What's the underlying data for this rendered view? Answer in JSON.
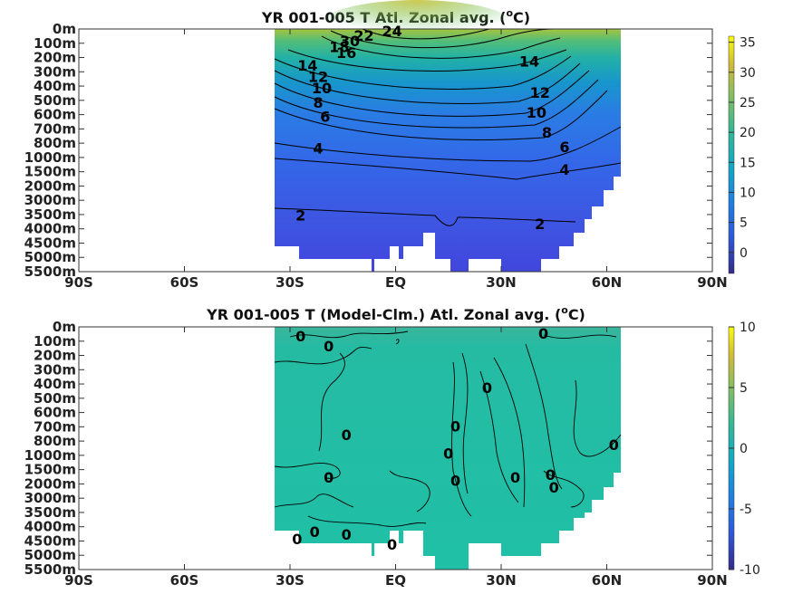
{
  "chart_data": [
    {
      "type": "heatmap",
      "subtype": "filled-contour",
      "title": "YR 001-005 T Atl. Zonal avg. (oC)",
      "title_parts": [
        "YR 001-005 T Atl. Zonal avg. (",
        "o",
        "C)"
      ],
      "x_ticks": [
        "90S",
        "60S",
        "30S",
        "EQ",
        "30N",
        "60N",
        "90N"
      ],
      "x_values": [
        -90,
        -60,
        -30,
        0,
        30,
        60,
        90
      ],
      "depth_ticks": [
        "0m",
        "100m",
        "200m",
        "300m",
        "400m",
        "500m",
        "600m",
        "700m",
        "800m",
        "1000m",
        "1500m",
        "2000m",
        "3000m",
        "3500m",
        "4000m",
        "4500m",
        "5000m",
        "5500m"
      ],
      "colorbar": {
        "range": [
          -3.5,
          36
        ],
        "ticks": [
          "35",
          "30",
          "25",
          "20",
          "15",
          "10",
          "5",
          "0"
        ],
        "tick_values": [
          35,
          30,
          25,
          20,
          15,
          10,
          5,
          0
        ],
        "colormap": "parula"
      },
      "data_extent_lat": [
        -34,
        63
      ],
      "contour_labels": [
        {
          "text": "24",
          "lat": -1,
          "depth_level": 0.2
        },
        {
          "text": "22",
          "lat": -9,
          "depth_level": 0.5
        },
        {
          "text": "30",
          "lat": -13,
          "depth_level": 0.9
        },
        {
          "text": "18",
          "lat": -16,
          "depth_level": 1.3
        },
        {
          "text": "16",
          "lat": -14,
          "depth_level": 1.7
        },
        {
          "text": "14",
          "lat": -25,
          "depth_level": 2.6
        },
        {
          "text": "12",
          "lat": -22,
          "depth_level": 3.4
        },
        {
          "text": "10",
          "lat": -21,
          "depth_level": 4.2
        },
        {
          "text": "8",
          "lat": -22,
          "depth_level": 5.2
        },
        {
          "text": "6",
          "lat": -20,
          "depth_level": 6.2
        },
        {
          "text": "4",
          "lat": -22,
          "depth_level": 8.4
        },
        {
          "text": "2",
          "lat": -27,
          "depth_level": 13.1
        },
        {
          "text": "14",
          "lat": 38,
          "depth_level": 2.3
        },
        {
          "text": "12",
          "lat": 41,
          "depth_level": 4.5
        },
        {
          "text": "10",
          "lat": 40,
          "depth_level": 5.9
        },
        {
          "text": "8",
          "lat": 43,
          "depth_level": 7.3
        },
        {
          "text": "6",
          "lat": 48,
          "depth_level": 8.3
        },
        {
          "text": "4",
          "lat": 48,
          "depth_level": 9.9
        },
        {
          "text": "2",
          "lat": 41,
          "depth_level": 13.7
        }
      ]
    },
    {
      "type": "heatmap",
      "subtype": "filled-contour",
      "title": "YR 001-005 T (Model-Clm.) Atl. Zonal avg. (oC)",
      "title_parts": [
        "YR 001-005 T (Model-Clm.) Atl. Zonal avg. (",
        "o",
        "C)"
      ],
      "x_ticks": [
        "90S",
        "60S",
        "30S",
        "EQ",
        "30N",
        "60N",
        "90N"
      ],
      "x_values": [
        -90,
        -60,
        -30,
        0,
        30,
        60,
        90
      ],
      "depth_ticks": [
        "0m",
        "100m",
        "200m",
        "300m",
        "400m",
        "500m",
        "600m",
        "700m",
        "800m",
        "1000m",
        "1500m",
        "2000m",
        "3000m",
        "3500m",
        "4000m",
        "4500m",
        "5000m",
        "5500m"
      ],
      "colorbar": {
        "range": [
          -10,
          10
        ],
        "ticks": [
          "10",
          "5",
          "0",
          "-5",
          "-10"
        ],
        "tick_values": [
          10,
          5,
          0,
          -5,
          -10
        ],
        "colormap": "parula"
      },
      "data_extent_lat": [
        -34,
        63
      ],
      "contour_labels": [
        {
          "text": "0",
          "lat": -27,
          "depth_level": 0.7
        },
        {
          "text": "0",
          "lat": -19,
          "depth_level": 1.4
        },
        {
          "text": "0",
          "lat": 42,
          "depth_level": 0.5
        },
        {
          "text": "0",
          "lat": 26,
          "depth_level": 4.3
        },
        {
          "text": "0",
          "lat": 17,
          "depth_level": 7.0
        },
        {
          "text": "0",
          "lat": -14,
          "depth_level": 7.6
        },
        {
          "text": "0",
          "lat": 15,
          "depth_level": 8.9
        },
        {
          "text": "0",
          "lat": 62,
          "depth_level": 8.3
        },
        {
          "text": "0",
          "lat": -19,
          "depth_level": 10.6
        },
        {
          "text": "0",
          "lat": 17,
          "depth_level": 10.8
        },
        {
          "text": "0",
          "lat": 34,
          "depth_level": 10.6
        },
        {
          "text": "0",
          "lat": 44,
          "depth_level": 10.4
        },
        {
          "text": "0",
          "lat": 45,
          "depth_level": 11.3
        },
        {
          "text": "0",
          "lat": -23,
          "depth_level": 14.4
        },
        {
          "text": "0",
          "lat": -14,
          "depth_level": 14.6
        },
        {
          "text": "0",
          "lat": -28,
          "depth_level": 14.9
        },
        {
          "text": "0",
          "lat": -1,
          "depth_level": 15.3
        }
      ]
    }
  ]
}
